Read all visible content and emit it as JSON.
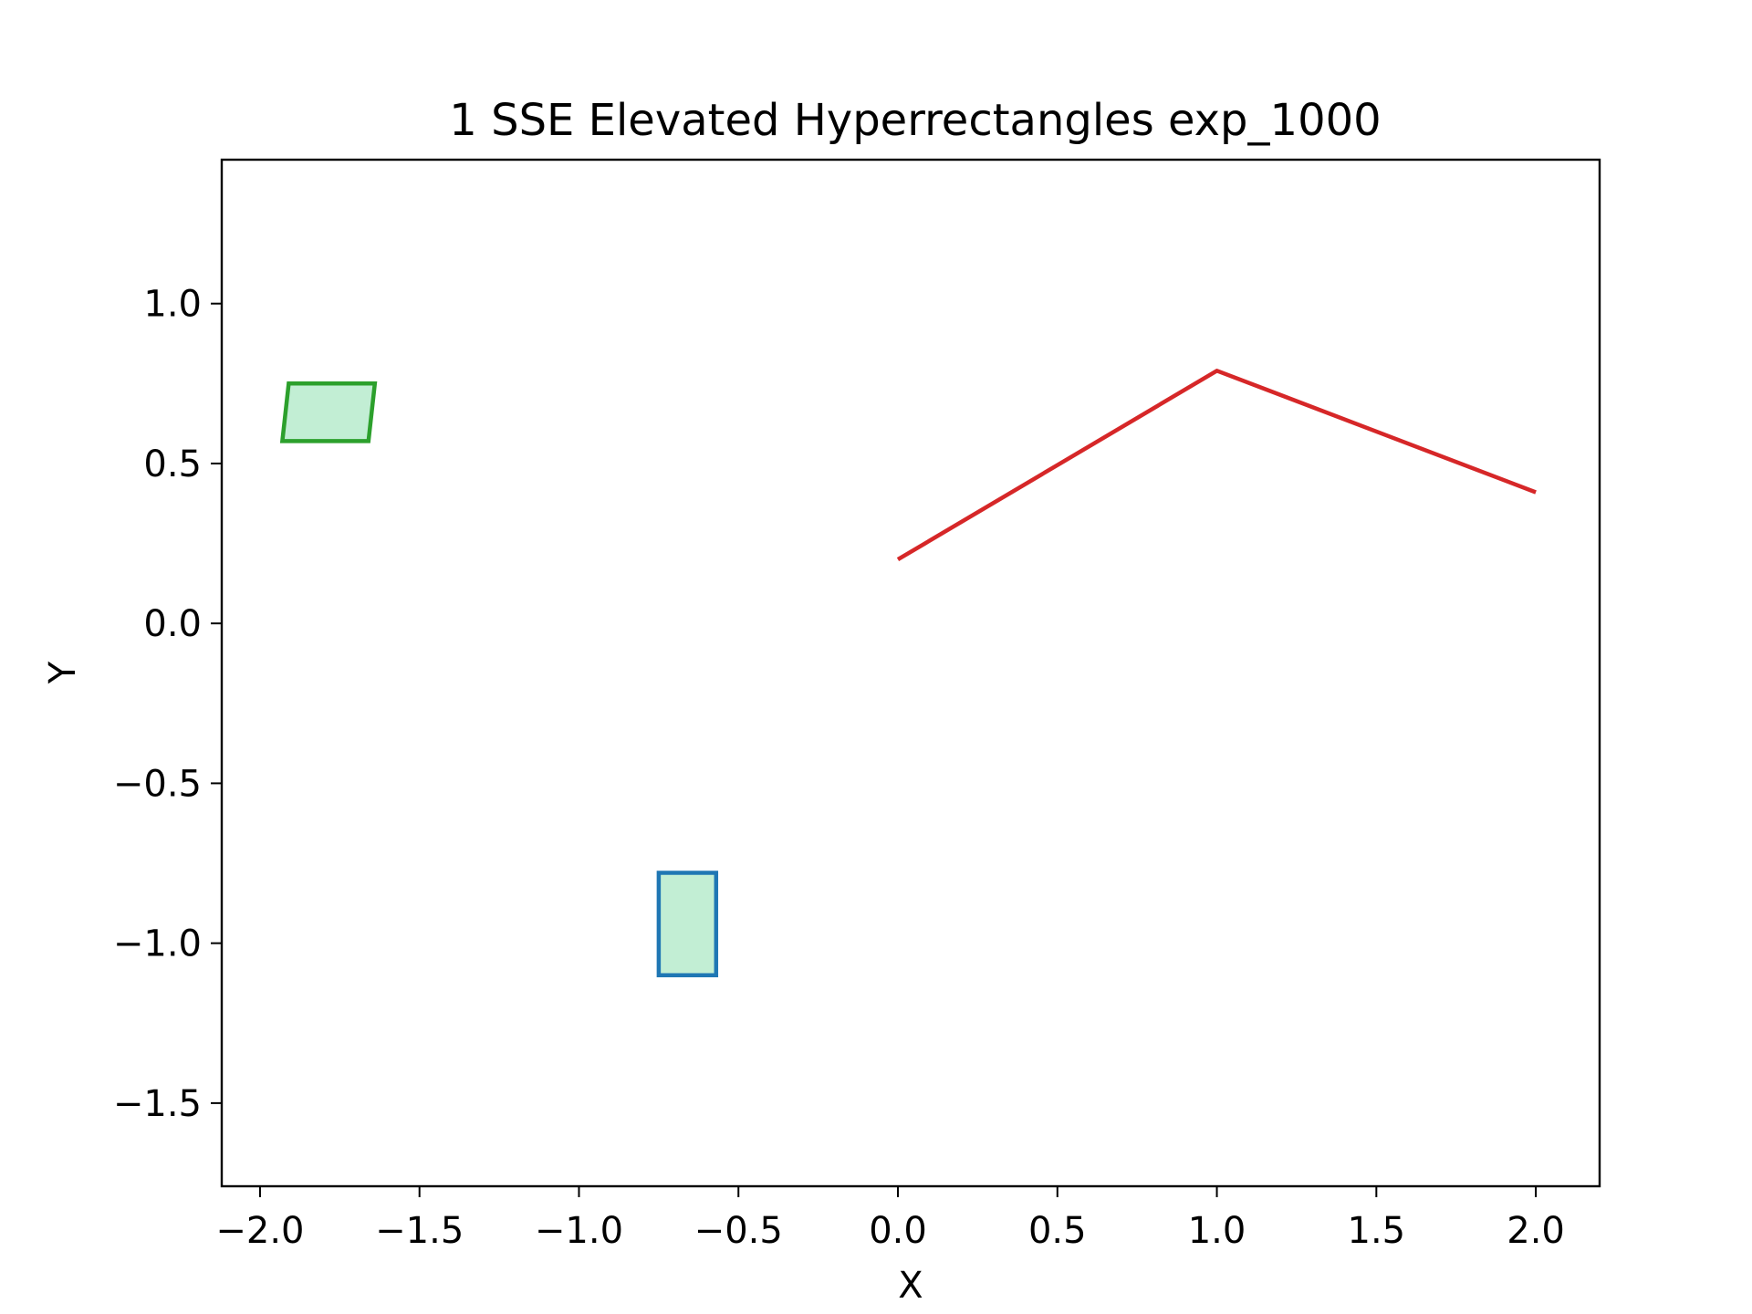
{
  "chart_data": {
    "type": "line",
    "title": "1 SSE Elevated Hyperrectangles exp_1000",
    "xlabel": "X",
    "ylabel": "Y",
    "xlim": [
      -2.12,
      2.2
    ],
    "ylim": [
      -1.76,
      1.45
    ],
    "grid": false,
    "x_ticks": [
      -2.0,
      -1.5,
      -1.0,
      -0.5,
      0.0,
      0.5,
      1.0,
      1.5,
      2.0
    ],
    "x_tick_labels": [
      "−2.0",
      "−1.5",
      "−1.0",
      "−0.5",
      "0.0",
      "0.5",
      "1.0",
      "1.5",
      "2.0"
    ],
    "y_ticks": [
      1.0,
      0.5,
      0.0,
      -0.5,
      -1.0,
      -1.5
    ],
    "y_tick_labels": [
      "1.0",
      "0.5",
      "0.0",
      "−0.5",
      "−1.0",
      "−1.5"
    ],
    "series": [
      {
        "kind": "line",
        "color": "#d62728",
        "x": [
          0.0,
          1.0,
          2.0
        ],
        "y": [
          0.2,
          0.79,
          0.41
        ]
      }
    ],
    "shapes": [
      {
        "kind": "polygon",
        "stroke": "#2ca02c",
        "fill": "#c2eed4",
        "points": [
          [
            -1.93,
            0.57
          ],
          [
            -1.91,
            0.75
          ],
          [
            -1.64,
            0.75
          ],
          [
            -1.66,
            0.57
          ]
        ]
      },
      {
        "kind": "polygon",
        "stroke": "#1f77b4",
        "fill": "#c2eed4",
        "points": [
          [
            -0.75,
            -1.1
          ],
          [
            -0.75,
            -0.78
          ],
          [
            -0.57,
            -0.78
          ],
          [
            -0.57,
            -1.1
          ]
        ]
      }
    ]
  }
}
